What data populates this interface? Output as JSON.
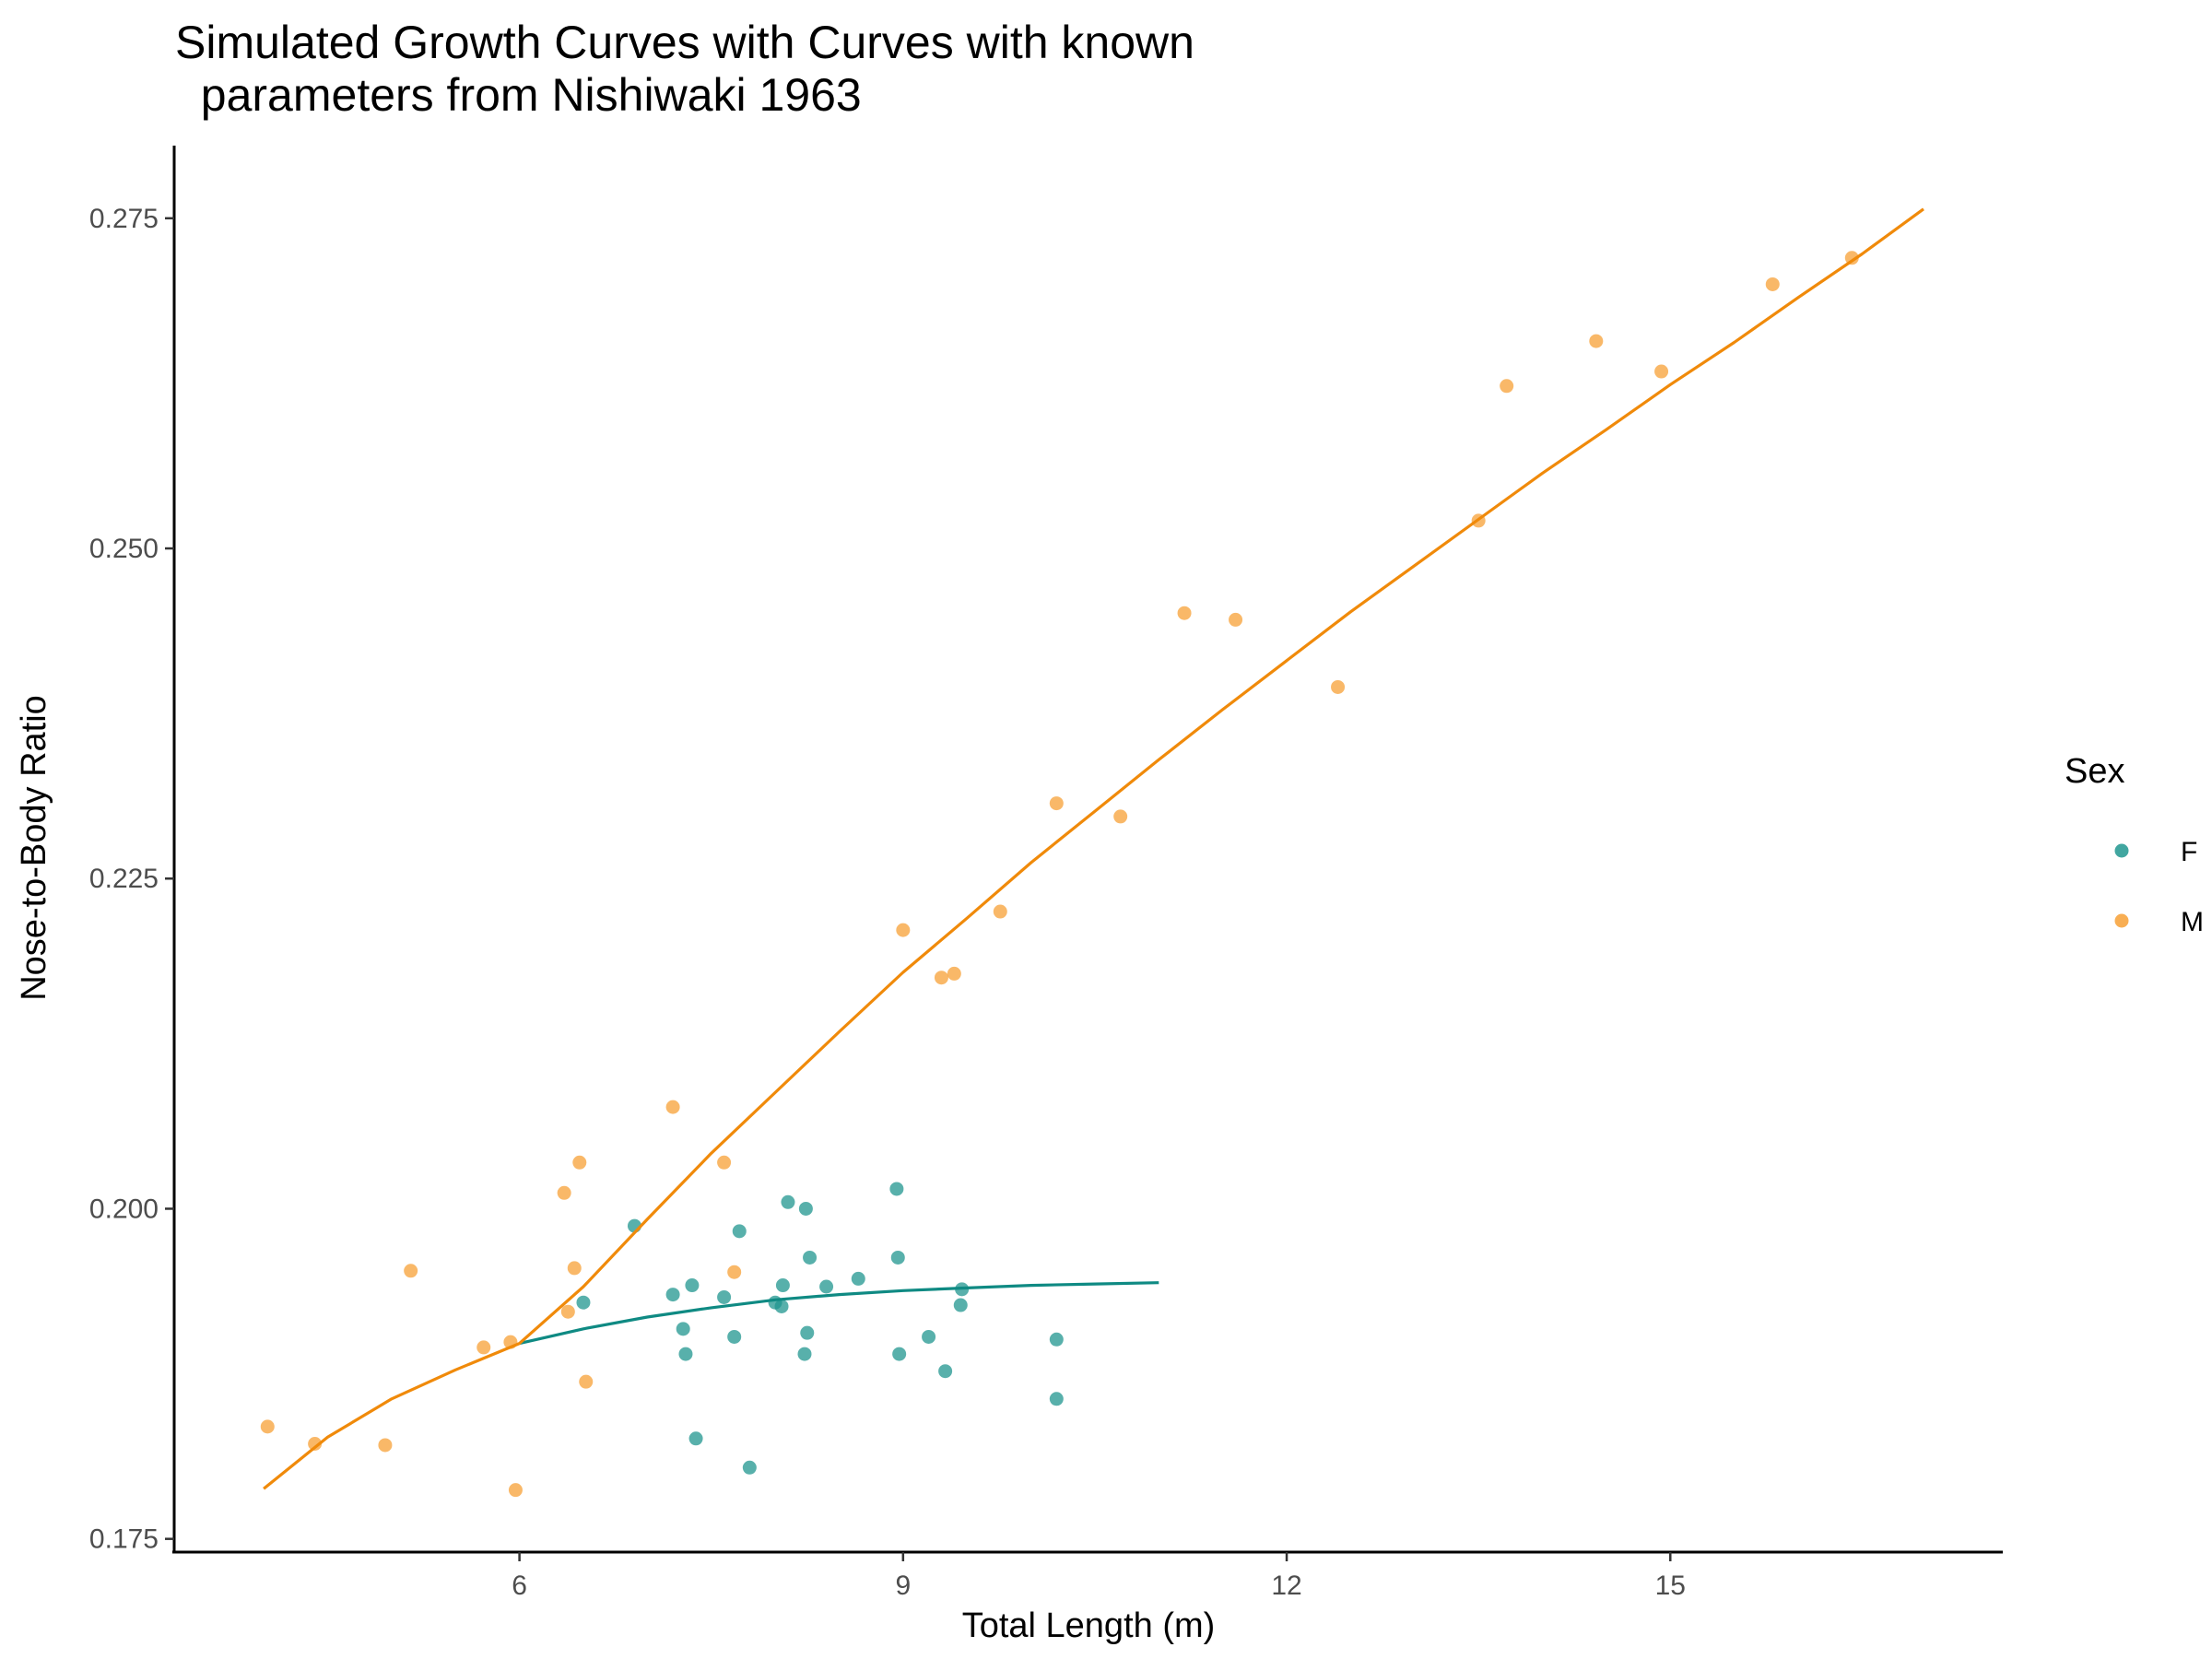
{
  "chart_data": {
    "type": "scatter",
    "title_lines": [
      "Simulated Growth Curves with Curves with known",
      "  parameters from Nishiwaki 1963"
    ],
    "xlabel": "Total Length (m)",
    "ylabel": "Nose-to-Body Ratio",
    "xlim": [
      3.3,
      17.6
    ],
    "ylim": [
      0.174,
      0.2805
    ],
    "x_ticks": [
      6,
      9,
      12,
      15
    ],
    "x_tick_labels": [
      "6",
      "9",
      "12",
      "15"
    ],
    "y_ticks": [
      0.175,
      0.2,
      0.225,
      0.25,
      0.275
    ],
    "y_tick_labels": [
      "0.175",
      "0.200",
      "0.225",
      "0.250",
      "0.275"
    ],
    "grid": false,
    "legend": {
      "title": "Sex",
      "placement": "right",
      "entries": [
        {
          "label": "F",
          "color": "#20968f"
        },
        {
          "label": "M",
          "color": "#f7a035"
        }
      ]
    },
    "series": [
      {
        "name": "F",
        "kind": "points",
        "color": "#20968f",
        "points": [
          [
            6.5,
            0.1929
          ],
          [
            6.9,
            0.1987
          ],
          [
            7.2,
            0.1935
          ],
          [
            7.28,
            0.1909
          ],
          [
            7.3,
            0.189
          ],
          [
            7.35,
            0.1942
          ],
          [
            7.38,
            0.1826
          ],
          [
            7.6,
            0.1933
          ],
          [
            7.68,
            0.1903
          ],
          [
            7.72,
            0.1983
          ],
          [
            7.8,
            0.1804
          ],
          [
            8.0,
            0.1929
          ],
          [
            8.05,
            0.1926
          ],
          [
            8.06,
            0.1942
          ],
          [
            8.1,
            0.2005
          ],
          [
            8.23,
            0.189
          ],
          [
            8.24,
            0.2
          ],
          [
            8.25,
            0.1906
          ],
          [
            8.27,
            0.1963
          ],
          [
            8.4,
            0.1941
          ],
          [
            8.65,
            0.1947
          ],
          [
            8.95,
            0.2015
          ],
          [
            8.96,
            0.1963
          ],
          [
            8.97,
            0.189
          ],
          [
            9.2,
            0.1903
          ],
          [
            9.33,
            0.1877
          ],
          [
            9.45,
            0.1927
          ],
          [
            9.46,
            0.1939
          ],
          [
            10.2,
            0.1856
          ],
          [
            10.2,
            0.1901
          ]
        ]
      },
      {
        "name": "M",
        "kind": "points",
        "color": "#f7a035",
        "points": [
          [
            4.03,
            0.1835
          ],
          [
            4.4,
            0.1822
          ],
          [
            4.95,
            0.1821
          ],
          [
            5.15,
            0.1953
          ],
          [
            5.72,
            0.1895
          ],
          [
            5.93,
            0.1899
          ],
          [
            5.97,
            0.1787
          ],
          [
            6.35,
            0.2012
          ],
          [
            6.38,
            0.1922
          ],
          [
            6.43,
            0.1955
          ],
          [
            6.47,
            0.2035
          ],
          [
            6.52,
            0.1869
          ],
          [
            7.2,
            0.2077
          ],
          [
            7.6,
            0.2035
          ],
          [
            7.68,
            0.1952
          ],
          [
            9.0,
            0.2211
          ],
          [
            9.3,
            0.2175
          ],
          [
            9.4,
            0.2178
          ],
          [
            9.76,
            0.2225
          ],
          [
            10.2,
            0.2307
          ],
          [
            10.7,
            0.2297
          ],
          [
            11.2,
            0.2451
          ],
          [
            11.6,
            0.2446
          ],
          [
            12.4,
            0.2395
          ],
          [
            13.5,
            0.2521
          ],
          [
            13.72,
            0.2623
          ],
          [
            14.42,
            0.2657
          ],
          [
            14.93,
            0.2634
          ],
          [
            15.8,
            0.27
          ],
          [
            16.42,
            0.272
          ]
        ]
      },
      {
        "name": "F",
        "kind": "curve",
        "color": "#0f8a83",
        "points": [
          [
            6.0,
            0.1898
          ],
          [
            6.5,
            0.1909
          ],
          [
            7.0,
            0.1918
          ],
          [
            7.5,
            0.1925
          ],
          [
            8.0,
            0.1931
          ],
          [
            8.5,
            0.1935
          ],
          [
            9.0,
            0.1938
          ],
          [
            9.5,
            0.194
          ],
          [
            10.0,
            0.1942
          ],
          [
            10.5,
            0.1943
          ],
          [
            11.0,
            0.1944
          ]
        ]
      },
      {
        "name": "M",
        "kind": "curve",
        "color": "#f08a0a",
        "points": [
          [
            4.0,
            0.1788
          ],
          [
            4.5,
            0.1827
          ],
          [
            5.0,
            0.1856
          ],
          [
            5.5,
            0.1878
          ],
          [
            6.0,
            0.1898
          ],
          [
            6.5,
            0.1941
          ],
          [
            7.0,
            0.1992
          ],
          [
            7.5,
            0.2042
          ],
          [
            8.0,
            0.2088
          ],
          [
            8.5,
            0.2134
          ],
          [
            9.0,
            0.2179
          ],
          [
            9.5,
            0.222
          ],
          [
            10.0,
            0.2262
          ],
          [
            10.5,
            0.2301
          ],
          [
            11.0,
            0.234
          ],
          [
            11.5,
            0.2378
          ],
          [
            12.0,
            0.2415
          ],
          [
            12.5,
            0.2452
          ],
          [
            13.0,
            0.2487
          ],
          [
            13.5,
            0.2522
          ],
          [
            14.0,
            0.2557
          ],
          [
            14.5,
            0.259
          ],
          [
            15.0,
            0.2624
          ],
          [
            15.5,
            0.2656
          ],
          [
            16.0,
            0.269
          ],
          [
            16.5,
            0.2723
          ],
          [
            16.98,
            0.2757
          ]
        ]
      }
    ]
  }
}
